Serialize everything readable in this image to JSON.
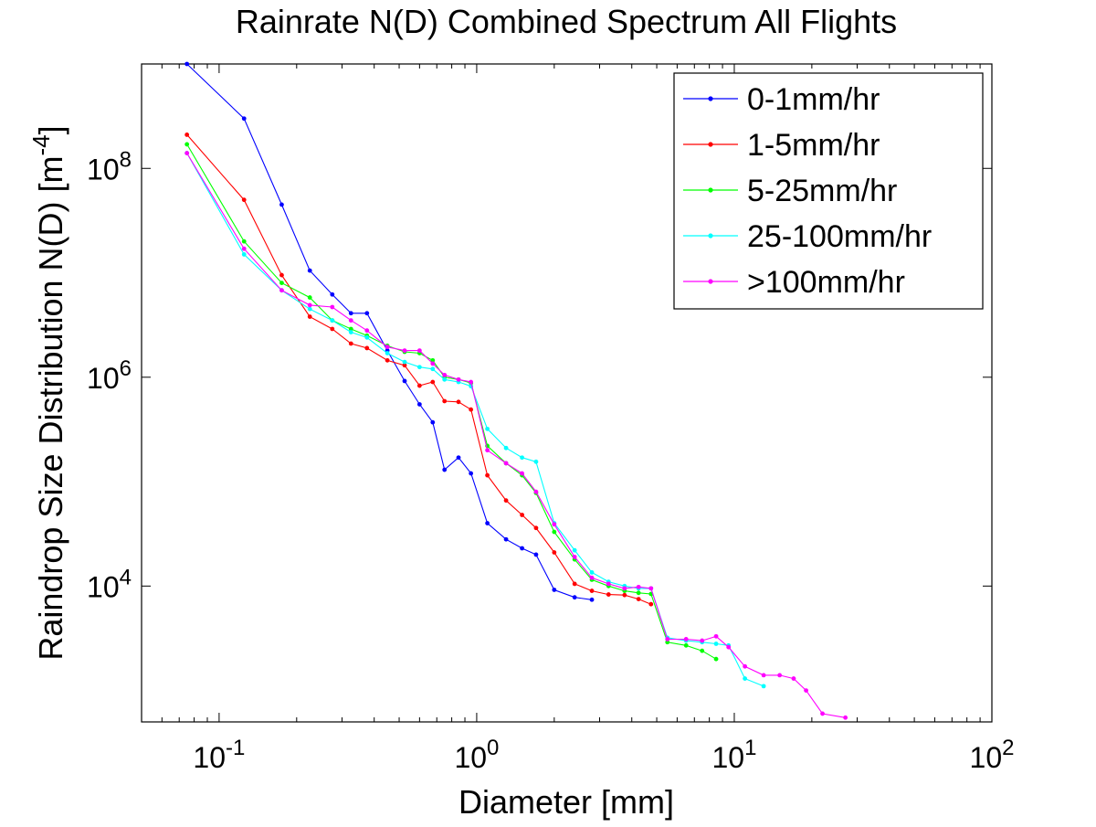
{
  "chart_data": {
    "type": "line",
    "title": "Rainrate N(D) Combined Spectrum All Flights",
    "xlabel": "Diameter [mm]",
    "ylabel": "Raindrop Size Distribution N(D) [m",
    "ylabel_exponent": "-4",
    "ylabel_suffix": "]",
    "x_scale": "log",
    "y_scale": "log",
    "xlim": [
      0.05,
      100
    ],
    "ylim": [
      500,
      1000000000
    ],
    "x_tick_labels": [
      {
        "value": 0.1,
        "base": "10",
        "exp": "-1"
      },
      {
        "value": 1,
        "base": "10",
        "exp": "0"
      },
      {
        "value": 10,
        "base": "10",
        "exp": "1"
      },
      {
        "value": 100,
        "base": "10",
        "exp": "2"
      }
    ],
    "y_tick_labels": [
      {
        "value": 10000,
        "base": "10",
        "exp": "4"
      },
      {
        "value": 1000000,
        "base": "10",
        "exp": "6"
      },
      {
        "value": 100000000,
        "base": "10",
        "exp": "8"
      }
    ],
    "grid": false,
    "legend_position": "top-right",
    "series": [
      {
        "name": "0-1mm/hr",
        "color": "#0000ff",
        "points": [
          [
            0.075,
            1000000000
          ],
          [
            0.125,
            300000000
          ],
          [
            0.175,
            45000000
          ],
          [
            0.225,
            10500000
          ],
          [
            0.275,
            6200000
          ],
          [
            0.325,
            4100000
          ],
          [
            0.375,
            4100000
          ],
          [
            0.45,
            1800000
          ],
          [
            0.525,
            920000
          ],
          [
            0.6,
            550000
          ],
          [
            0.675,
            370000
          ],
          [
            0.75,
            130000
          ],
          [
            0.85,
            170000
          ],
          [
            0.95,
            120000
          ],
          [
            1.1,
            40000
          ],
          [
            1.3,
            28000
          ],
          [
            1.5,
            23000
          ],
          [
            1.7,
            20000
          ],
          [
            2.0,
            9200
          ],
          [
            2.4,
            7800
          ],
          [
            2.8,
            7400
          ]
        ]
      },
      {
        "name": "1-5mm/hr",
        "color": "#ff0000",
        "points": [
          [
            0.075,
            210000000
          ],
          [
            0.125,
            50000000
          ],
          [
            0.175,
            9500000
          ],
          [
            0.225,
            3800000
          ],
          [
            0.275,
            2900000
          ],
          [
            0.325,
            2100000
          ],
          [
            0.375,
            1900000
          ],
          [
            0.45,
            1450000
          ],
          [
            0.525,
            1300000
          ],
          [
            0.6,
            830000
          ],
          [
            0.675,
            900000
          ],
          [
            0.75,
            590000
          ],
          [
            0.85,
            580000
          ],
          [
            0.95,
            490000
          ],
          [
            1.1,
            115000
          ],
          [
            1.3,
            66000
          ],
          [
            1.5,
            48000
          ],
          [
            1.7,
            36000
          ],
          [
            2.0,
            21000
          ],
          [
            2.4,
            10500
          ],
          [
            2.8,
            9000
          ],
          [
            3.25,
            8300
          ],
          [
            3.75,
            8200
          ],
          [
            4.25,
            7500
          ],
          [
            4.75,
            6700
          ]
        ]
      },
      {
        "name": "5-25mm/hr",
        "color": "#00ff00",
        "points": [
          [
            0.075,
            170000000
          ],
          [
            0.125,
            20000000
          ],
          [
            0.175,
            8000000
          ],
          [
            0.225,
            5800000
          ],
          [
            0.275,
            3500000
          ],
          [
            0.325,
            2900000
          ],
          [
            0.375,
            2500000
          ],
          [
            0.45,
            2000000
          ],
          [
            0.525,
            1750000
          ],
          [
            0.6,
            1700000
          ],
          [
            0.675,
            1450000
          ],
          [
            0.75,
            1000000
          ],
          [
            0.85,
            950000
          ],
          [
            0.95,
            880000
          ],
          [
            1.1,
            220000
          ],
          [
            1.3,
            150000
          ],
          [
            1.5,
            115000
          ],
          [
            1.7,
            78000
          ],
          [
            2.0,
            33000
          ],
          [
            2.4,
            18000
          ],
          [
            2.8,
            11500
          ],
          [
            3.25,
            10000
          ],
          [
            3.75,
            9000
          ],
          [
            4.25,
            8600
          ],
          [
            4.75,
            8400
          ],
          [
            5.5,
            2900
          ],
          [
            6.5,
            2700
          ],
          [
            7.5,
            2400
          ],
          [
            8.5,
            2000
          ]
        ]
      },
      {
        "name": "25-100mm/hr",
        "color": "#00ffff",
        "points": [
          [
            0.075,
            140000000
          ],
          [
            0.125,
            15000000
          ],
          [
            0.175,
            6800000
          ],
          [
            0.225,
            4500000
          ],
          [
            0.275,
            3500000
          ],
          [
            0.325,
            2700000
          ],
          [
            0.375,
            2400000
          ],
          [
            0.45,
            1700000
          ],
          [
            0.525,
            1400000
          ],
          [
            0.6,
            1250000
          ],
          [
            0.675,
            1200000
          ],
          [
            0.75,
            950000
          ],
          [
            0.85,
            900000
          ],
          [
            0.95,
            820000
          ],
          [
            1.1,
            320000
          ],
          [
            1.3,
            210000
          ],
          [
            1.5,
            170000
          ],
          [
            1.7,
            155000
          ],
          [
            2.0,
            40000
          ],
          [
            2.4,
            22000
          ],
          [
            2.8,
            13500
          ],
          [
            3.25,
            11000
          ],
          [
            3.75,
            10000
          ],
          [
            4.25,
            9500
          ],
          [
            4.75,
            9500
          ],
          [
            5.5,
            3200
          ],
          [
            6.5,
            3000
          ],
          [
            7.5,
            2900
          ],
          [
            8.5,
            2800
          ],
          [
            9.5,
            2700
          ],
          [
            11,
            1300
          ],
          [
            13,
            1100
          ]
        ]
      },
      {
        "name": ">100mm/hr",
        "color": "#ff00ff",
        "points": [
          [
            0.075,
            140000000
          ],
          [
            0.125,
            17000000
          ],
          [
            0.175,
            6800000
          ],
          [
            0.225,
            4900000
          ],
          [
            0.275,
            4700000
          ],
          [
            0.325,
            3500000
          ],
          [
            0.375,
            2800000
          ],
          [
            0.45,
            1950000
          ],
          [
            0.525,
            1800000
          ],
          [
            0.6,
            1800000
          ],
          [
            0.675,
            1350000
          ],
          [
            0.75,
            1050000
          ],
          [
            0.85,
            950000
          ],
          [
            0.95,
            900000
          ],
          [
            1.1,
            200000
          ],
          [
            1.3,
            150000
          ],
          [
            1.5,
            120000
          ],
          [
            1.7,
            80000
          ],
          [
            2.0,
            39000
          ],
          [
            2.4,
            19000
          ],
          [
            2.8,
            12000
          ],
          [
            3.25,
            10500
          ],
          [
            3.75,
            9500
          ],
          [
            4.25,
            9800
          ],
          [
            4.75,
            9500
          ],
          [
            5.5,
            3100
          ],
          [
            6.5,
            3100
          ],
          [
            7.5,
            3000
          ],
          [
            8.5,
            3300
          ],
          [
            9.5,
            2600
          ],
          [
            11,
            1700
          ],
          [
            13,
            1400
          ],
          [
            15,
            1400
          ],
          [
            17,
            1300
          ],
          [
            19,
            1000
          ],
          [
            22,
            600
          ],
          [
            27,
            550
          ]
        ]
      }
    ]
  }
}
